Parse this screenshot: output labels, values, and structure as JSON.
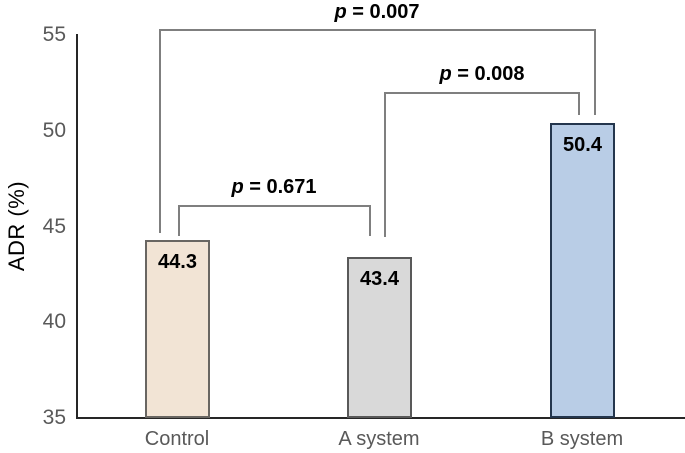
{
  "chart_data": {
    "type": "bar",
    "title": "",
    "xlabel": "",
    "ylabel": "ADR (%)",
    "ylim": [
      35,
      55
    ],
    "yticks": [
      55,
      50,
      45,
      40,
      35
    ],
    "ytick_labels": [
      "55",
      "50",
      "45",
      "40",
      "35"
    ],
    "grid": false,
    "legend": null,
    "categories": [
      "Control",
      "A system",
      "B system"
    ],
    "values": [
      44.3,
      43.4,
      50.4
    ],
    "value_labels": [
      "44.3",
      "43.4",
      "50.4"
    ],
    "bar_fill_colors": [
      "#F2E4D5",
      "#D9D9D9",
      "#B9CDE6"
    ],
    "bar_border_colors": [
      "#696662",
      "#595959",
      "#24364D"
    ],
    "axis_color": "#262626",
    "bracket_color": "#7F7F7F",
    "significance": [
      {
        "pair": [
          "Control",
          "B system"
        ],
        "p_var": "p",
        "p_rest": " = 0.007"
      },
      {
        "pair": [
          "A system",
          "B system"
        ],
        "p_var": "p",
        "p_rest": " = 0.008"
      },
      {
        "pair": [
          "Control",
          "A system"
        ],
        "p_var": "p",
        "p_rest": " = 0.671"
      }
    ]
  }
}
